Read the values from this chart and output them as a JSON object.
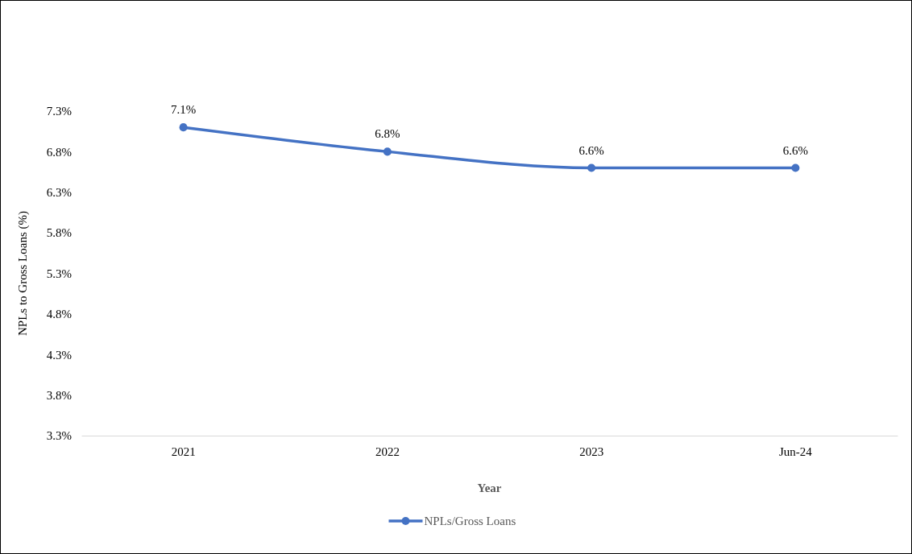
{
  "chart_data": {
    "type": "line",
    "xlabel": "Year",
    "ylabel": "NPLs to Gross Loans (%)",
    "categories": [
      "2021",
      "2022",
      "2023",
      "Jun-24"
    ],
    "series": [
      {
        "name": "NPLs/Gross Loans",
        "color": "#4472c4",
        "values": [
          7.1,
          6.8,
          6.6,
          6.6
        ],
        "value_labels": [
          "7.1%",
          "6.8%",
          "6.6%",
          "6.6%"
        ]
      }
    ],
    "ylim": [
      3.3,
      7.3
    ],
    "yticks": [
      {
        "value": 3.3,
        "label": "3.3%"
      },
      {
        "value": 3.8,
        "label": "3.8%"
      },
      {
        "value": 4.3,
        "label": "4.3%"
      },
      {
        "value": 4.8,
        "label": "4.8%"
      },
      {
        "value": 5.3,
        "label": "5.3%"
      },
      {
        "value": 5.8,
        "label": "5.8%"
      },
      {
        "value": 6.3,
        "label": "6.3%"
      },
      {
        "value": 6.8,
        "label": "6.8%"
      },
      {
        "value": 7.3,
        "label": "7.3%"
      }
    ],
    "grid": false,
    "legend": "bottom",
    "marker": "circle",
    "line_style": "solid"
  }
}
